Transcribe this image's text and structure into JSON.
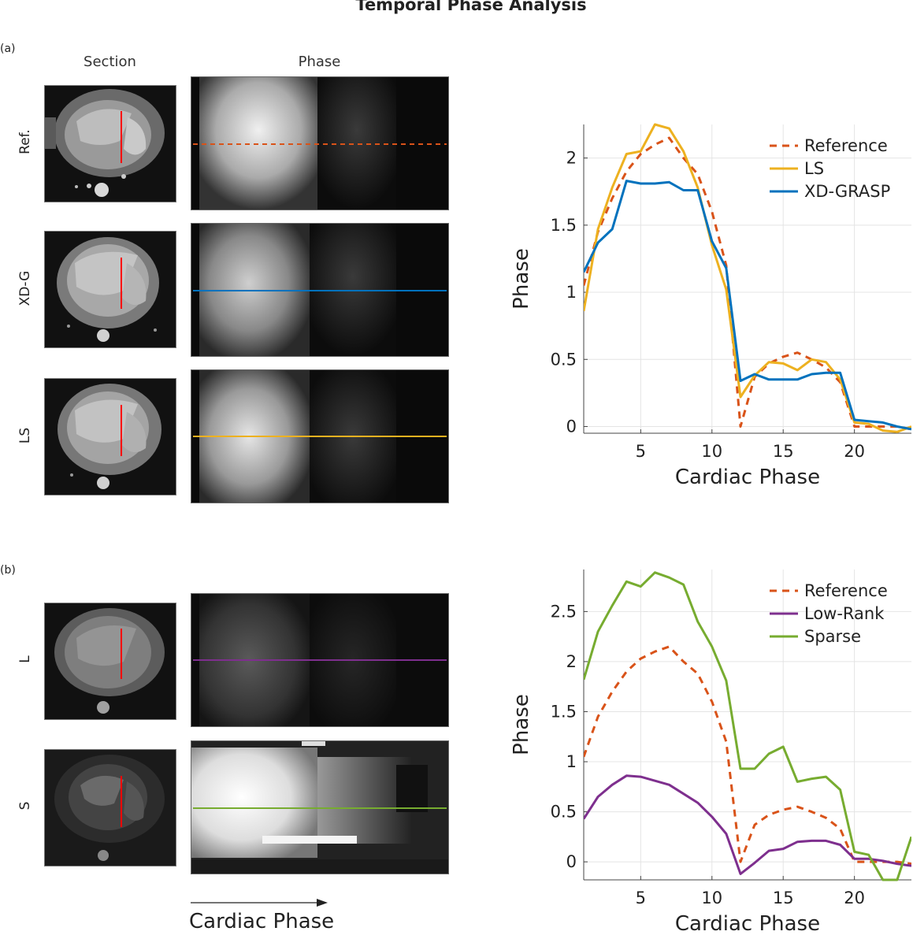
{
  "title": "Temporal Phase Analysis",
  "panel_a": {
    "label": "(a)",
    "col_headers": {
      "section": "Section",
      "phase": "Phase"
    },
    "rows": [
      {
        "label": "Ref.",
        "line_color": "#D95319",
        "line_style": "dashed"
      },
      {
        "label": "XD-G",
        "line_color": "#0072BD",
        "line_style": "solid"
      },
      {
        "label": "LS",
        "line_color": "#EDB120",
        "line_style": "solid"
      }
    ]
  },
  "panel_b": {
    "label": "(b)",
    "rows": [
      {
        "label": "L",
        "line_color": "#7E2F8E",
        "line_style": "solid"
      },
      {
        "label": "S",
        "line_color": "#77AC30",
        "line_style": "solid"
      }
    ]
  },
  "footer": {
    "arrow_label": "Cardiac Phase"
  },
  "colors": {
    "section_marker": "#FF0000"
  },
  "chart_data": [
    {
      "type": "line",
      "xlabel": "Cardiac Phase",
      "ylabel": "Phase",
      "xlim": [
        1,
        24
      ],
      "ylim": [
        -0.05,
        2.25
      ],
      "xticks": [
        "5",
        "10",
        "15",
        "20"
      ],
      "yticks": [
        "0",
        "0.5",
        "1",
        "1.5",
        "2"
      ],
      "grid": true,
      "legend_position": "top-right",
      "x": [
        1,
        2,
        3,
        4,
        5,
        6,
        7,
        8,
        9,
        10,
        11,
        12,
        13,
        14,
        15,
        16,
        17,
        18,
        19,
        20,
        21,
        22,
        23,
        24
      ],
      "series": [
        {
          "name": "Reference",
          "color": "#D95319",
          "style": "dashed",
          "values": [
            1.05,
            1.45,
            1.7,
            1.9,
            2.03,
            2.1,
            2.15,
            2.0,
            1.88,
            1.6,
            1.2,
            0.0,
            0.37,
            0.47,
            0.52,
            0.55,
            0.5,
            0.44,
            0.33,
            0.0,
            0.0,
            0.0,
            0.0,
            -0.02
          ]
        },
        {
          "name": "LS",
          "color": "#EDB120",
          "style": "solid",
          "values": [
            0.86,
            1.47,
            1.78,
            2.03,
            2.05,
            2.25,
            2.22,
            2.05,
            1.78,
            1.35,
            1.02,
            0.22,
            0.38,
            0.48,
            0.47,
            0.42,
            0.5,
            0.48,
            0.35,
            0.03,
            0.02,
            -0.03,
            -0.04,
            0.0
          ]
        },
        {
          "name": "XD-GRASP",
          "color": "#0072BD",
          "style": "solid",
          "values": [
            1.15,
            1.37,
            1.47,
            1.83,
            1.81,
            1.81,
            1.82,
            1.76,
            1.76,
            1.38,
            1.18,
            0.34,
            0.39,
            0.35,
            0.35,
            0.35,
            0.39,
            0.4,
            0.4,
            0.05,
            0.04,
            0.03,
            0.0,
            -0.02
          ]
        }
      ]
    },
    {
      "type": "line",
      "xlabel": "Cardiac Phase",
      "ylabel": "Phase",
      "xlim": [
        1,
        24
      ],
      "ylim": [
        -0.18,
        2.92
      ],
      "xticks": [
        "5",
        "10",
        "15",
        "20"
      ],
      "yticks": [
        "0",
        "0.5",
        "1",
        "1.5",
        "2",
        "2.5"
      ],
      "grid": true,
      "legend_position": "top-right",
      "x": [
        1,
        2,
        3,
        4,
        5,
        6,
        7,
        8,
        9,
        10,
        11,
        12,
        13,
        14,
        15,
        16,
        17,
        18,
        19,
        20,
        21,
        22,
        23,
        24
      ],
      "series": [
        {
          "name": "Reference",
          "color": "#D95319",
          "style": "dashed",
          "values": [
            1.05,
            1.45,
            1.7,
            1.9,
            2.03,
            2.1,
            2.15,
            2.0,
            1.88,
            1.6,
            1.2,
            0.0,
            0.37,
            0.47,
            0.52,
            0.55,
            0.5,
            0.44,
            0.33,
            0.0,
            0.0,
            0.0,
            0.0,
            -0.02
          ]
        },
        {
          "name": "Low-Rank",
          "color": "#7E2F8E",
          "style": "solid",
          "values": [
            0.43,
            0.65,
            0.77,
            0.86,
            0.85,
            0.81,
            0.77,
            0.68,
            0.59,
            0.45,
            0.28,
            -0.12,
            -0.01,
            0.11,
            0.13,
            0.2,
            0.21,
            0.21,
            0.17,
            0.03,
            0.03,
            0.01,
            -0.02,
            -0.04
          ]
        },
        {
          "name": "Sparse",
          "color": "#77AC30",
          "style": "solid",
          "values": [
            1.82,
            2.3,
            2.56,
            2.8,
            2.75,
            2.89,
            2.84,
            2.77,
            2.4,
            2.15,
            1.81,
            0.93,
            0.93,
            1.08,
            1.15,
            0.8,
            0.83,
            0.85,
            0.72,
            0.1,
            0.07,
            -0.18,
            -0.18,
            0.25
          ]
        }
      ]
    }
  ]
}
